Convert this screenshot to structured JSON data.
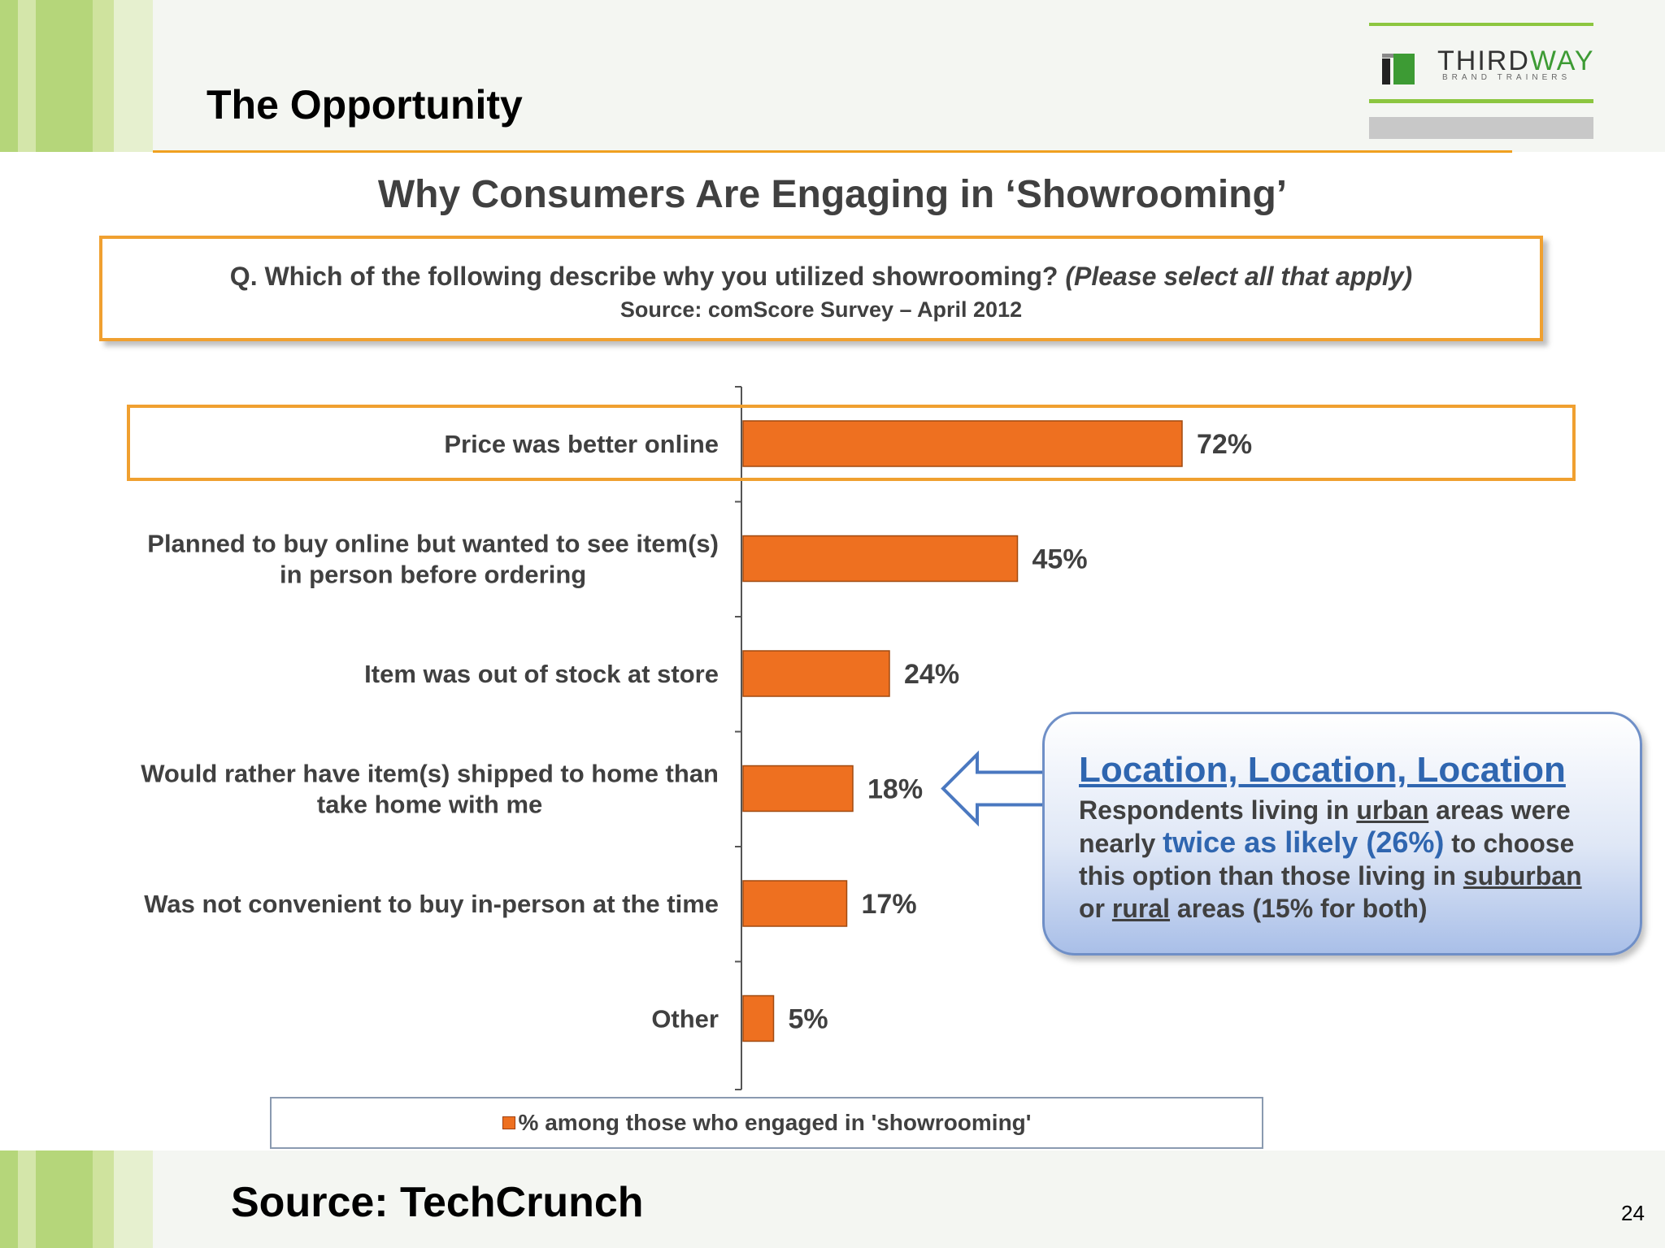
{
  "slide": {
    "title": "The Opportunity",
    "page_number": "24",
    "source": "Source:  TechCrunch"
  },
  "logo": {
    "text_a": "THIRD",
    "text_b": "WAY",
    "tagline": "BRAND TRAINERS"
  },
  "colors": {
    "bar": "#ee7020",
    "highlight": "#f0a030",
    "callout_accent": "#2f66b0",
    "stripe_green": "#b5d67a"
  },
  "chart_data": {
    "type": "bar",
    "orientation": "horizontal",
    "title": "Why Consumers Are Engaging in ‘Showrooming’",
    "subtitle": "Q. Which of the following describe why you utilized showrooming?",
    "subtitle_note": "(Please select all that apply)",
    "source": "Source: comScore Survey – April 2012",
    "categories": [
      [
        "Price was better online"
      ],
      [
        "Planned to buy online but wanted to see item(s)",
        "in person before ordering"
      ],
      [
        "Item was out of stock at store"
      ],
      [
        "Would rather have item(s) shipped to home than",
        "take home with me"
      ],
      [
        "Was not convenient to buy in-person at the time"
      ],
      [
        "Other"
      ]
    ],
    "series": [
      {
        "name": "% among those who engaged in 'showrooming'",
        "values": [
          72,
          45,
          24,
          18,
          17,
          5
        ]
      }
    ],
    "value_labels": [
      "72%",
      "45%",
      "24%",
      "18%",
      "17%",
      "5%"
    ],
    "xlim": [
      0,
      100
    ],
    "grid": false,
    "legend": "bottom",
    "highlighted_category": 0
  },
  "callout": {
    "title": "Location, Location, Location",
    "l1_a": "Respondents living in ",
    "l1_u": "urban",
    "l1_b": " areas were",
    "l2_a": "nearly ",
    "l2_hl": "twice as likely (26%)",
    "l2_b": " to choose",
    "l3_a": "this option than those living in ",
    "l3_u": "suburban",
    "l4_a": "or ",
    "l4_u": "rural",
    "l4_b": " areas (15% for both)"
  }
}
